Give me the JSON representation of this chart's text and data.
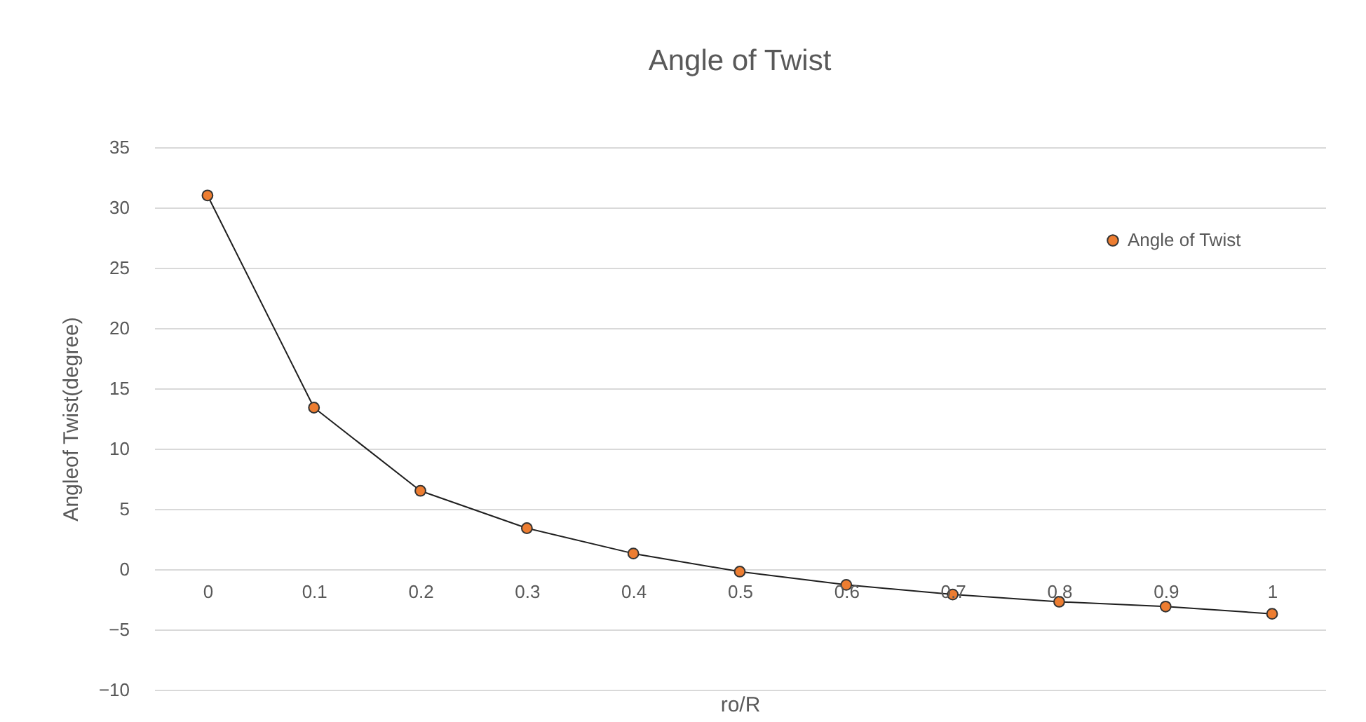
{
  "chart_data": {
    "type": "line",
    "title": "Angle of Twist",
    "xlabel": "ro/R",
    "ylabel": "Angleof Twist(degree)",
    "categories": [
      "0",
      "0.1",
      "0.2",
      "0.3",
      "0.4",
      "0.5",
      "0.6",
      "0.7",
      "0.8",
      "0.9",
      "1"
    ],
    "series": [
      {
        "name": "Angle of Twist",
        "color": "#ed7d31",
        "values": [
          31,
          13.4,
          6.5,
          3.4,
          1.3,
          -0.2,
          -1.3,
          -2.1,
          -2.7,
          -3.1,
          -3.7
        ]
      }
    ],
    "ylim": [
      -10,
      35
    ],
    "yticks": [
      -10,
      -5,
      0,
      5,
      10,
      15,
      20,
      25,
      30,
      35
    ],
    "grid": "y",
    "legend": "top right",
    "marker": "circle",
    "line_style": "solid"
  }
}
